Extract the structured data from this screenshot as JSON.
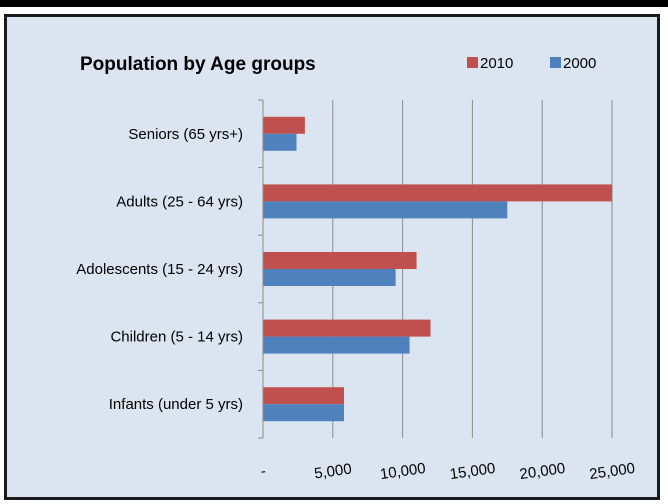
{
  "chart_data": {
    "type": "bar",
    "orientation": "horizontal",
    "title": "Population by Age groups",
    "categories": [
      "Seniors (65 yrs+)",
      "Adults (25 - 64 yrs)",
      "Adolescents (15 - 24 yrs)",
      "Children (5 - 14 yrs)",
      "Infants (under 5 yrs)"
    ],
    "series": [
      {
        "name": "2010",
        "color": "#c0504d",
        "values": [
          3000,
          25300,
          11000,
          12000,
          5800
        ]
      },
      {
        "name": "2000",
        "color": "#4f81bd",
        "values": [
          2400,
          17500,
          9500,
          10500,
          5800
        ]
      }
    ],
    "xlim": [
      0,
      25000
    ],
    "x_ticks": [
      0,
      5000,
      10000,
      15000,
      20000,
      25000
    ],
    "x_tick_labels": [
      "-",
      "5,000",
      "10,000",
      "15,000",
      "20,000",
      "25,000"
    ],
    "legend_position": "top-right",
    "grid": true,
    "xlabel": "",
    "ylabel": ""
  }
}
